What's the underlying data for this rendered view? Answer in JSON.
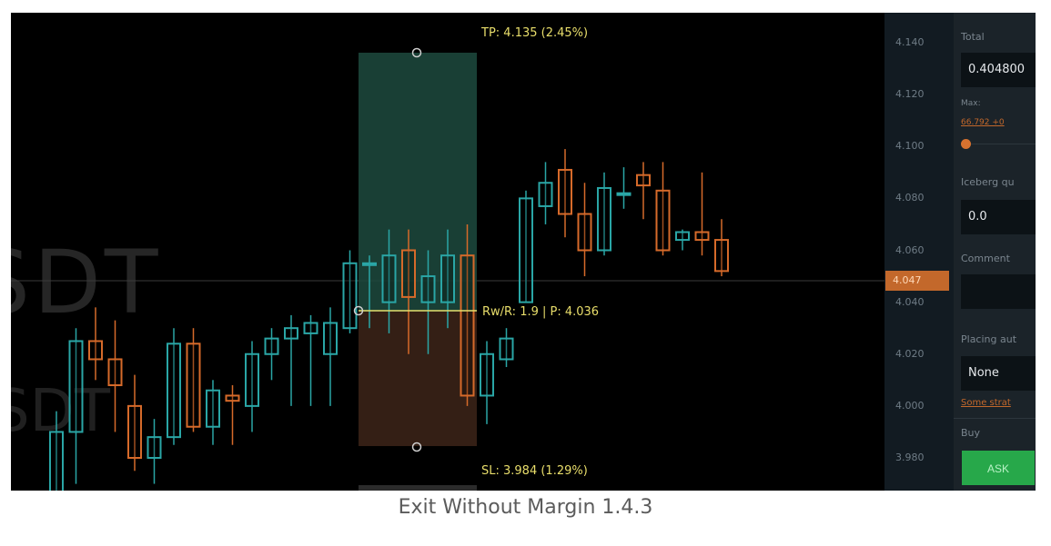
{
  "chart": {
    "watermark_main": "SDT",
    "watermark_sub": "SDT",
    "tp_label": "TP: 4.135 (2.45%)",
    "sl_label": "SL: 3.984 (1.29%)",
    "rr_label": "Rw/R: 1.9 | P: 4.036",
    "colors": {
      "profit_zone": "#1d4a3e",
      "loss_zone": "#3a2217",
      "bull": "#2aa6a6",
      "bear": "#d66a2a",
      "accent": "#e9de6b"
    },
    "candles": [
      {
        "o": 3.958,
        "h": 3.998,
        "l": 3.945,
        "c": 3.99
      },
      {
        "o": 3.99,
        "h": 4.03,
        "l": 3.97,
        "c": 4.025
      },
      {
        "o": 4.025,
        "h": 4.038,
        "l": 4.01,
        "c": 4.018
      },
      {
        "o": 4.018,
        "h": 4.033,
        "l": 3.99,
        "c": 4.008
      },
      {
        "o": 4.0,
        "h": 4.012,
        "l": 3.975,
        "c": 3.98
      },
      {
        "o": 3.98,
        "h": 3.995,
        "l": 3.97,
        "c": 3.988
      },
      {
        "o": 3.988,
        "h": 4.03,
        "l": 3.985,
        "c": 4.024
      },
      {
        "o": 4.024,
        "h": 4.03,
        "l": 3.99,
        "c": 3.992
      },
      {
        "o": 3.992,
        "h": 4.01,
        "l": 3.985,
        "c": 4.006
      },
      {
        "o": 4.004,
        "h": 4.008,
        "l": 3.985,
        "c": 4.002
      },
      {
        "o": 4.0,
        "h": 4.025,
        "l": 3.99,
        "c": 4.02
      },
      {
        "o": 4.02,
        "h": 4.03,
        "l": 4.01,
        "c": 4.026
      },
      {
        "o": 4.026,
        "h": 4.035,
        "l": 4.0,
        "c": 4.03
      },
      {
        "o": 4.028,
        "h": 4.035,
        "l": 4.0,
        "c": 4.032
      },
      {
        "o": 4.02,
        "h": 4.038,
        "l": 4.0,
        "c": 4.032
      },
      {
        "o": 4.03,
        "h": 4.06,
        "l": 4.028,
        "c": 4.055
      },
      {
        "o": 4.055,
        "h": 4.058,
        "l": 4.03,
        "c": 4.055
      },
      {
        "o": 4.04,
        "h": 4.068,
        "l": 4.028,
        "c": 4.058
      },
      {
        "o": 4.06,
        "h": 4.068,
        "l": 4.02,
        "c": 4.042
      },
      {
        "o": 4.04,
        "h": 4.06,
        "l": 4.02,
        "c": 4.05
      },
      {
        "o": 4.04,
        "h": 4.068,
        "l": 4.03,
        "c": 4.058
      },
      {
        "o": 4.058,
        "h": 4.07,
        "l": 4.0,
        "c": 4.004
      },
      {
        "o": 4.004,
        "h": 4.025,
        "l": 3.993,
        "c": 4.02
      },
      {
        "o": 4.018,
        "h": 4.03,
        "l": 4.015,
        "c": 4.026
      },
      {
        "o": 4.04,
        "h": 4.083,
        "l": 4.04,
        "c": 4.08
      },
      {
        "o": 4.077,
        "h": 4.094,
        "l": 4.07,
        "c": 4.086
      },
      {
        "o": 4.091,
        "h": 4.099,
        "l": 4.065,
        "c": 4.074
      },
      {
        "o": 4.074,
        "h": 4.086,
        "l": 4.05,
        "c": 4.06
      },
      {
        "o": 4.06,
        "h": 4.09,
        "l": 4.058,
        "c": 4.084
      },
      {
        "o": 4.082,
        "h": 4.092,
        "l": 4.076,
        "c": 4.082
      },
      {
        "o": 4.089,
        "h": 4.094,
        "l": 4.072,
        "c": 4.085
      },
      {
        "o": 4.083,
        "h": 4.094,
        "l": 4.058,
        "c": 4.06
      },
      {
        "o": 4.064,
        "h": 4.068,
        "l": 4.06,
        "c": 4.067
      },
      {
        "o": 4.067,
        "h": 4.09,
        "l": 4.058,
        "c": 4.064
      },
      {
        "o": 4.064,
        "h": 4.072,
        "l": 4.05,
        "c": 4.052
      }
    ]
  },
  "price_axis": {
    "ticks": [
      "4.140",
      "4.120",
      "4.100",
      "4.080",
      "4.060",
      "4.040",
      "4.020",
      "4.000",
      "3.980"
    ],
    "current_price": "4.047"
  },
  "order_panel": {
    "total_label": "Total",
    "total_value": "0.404800",
    "max_label": "Max:",
    "max_value": "66.792 +0",
    "iceberg_label": "Iceberg qu",
    "iceberg_value": "0.0",
    "comment_label": "Comment",
    "comment_value": "",
    "placing_label": "Placing aut",
    "placing_value": "None",
    "strategy_link": "Some strat",
    "buy_label": "Buy",
    "ask_button": "ASK"
  },
  "caption": "Exit Without Margin 1.4.3"
}
